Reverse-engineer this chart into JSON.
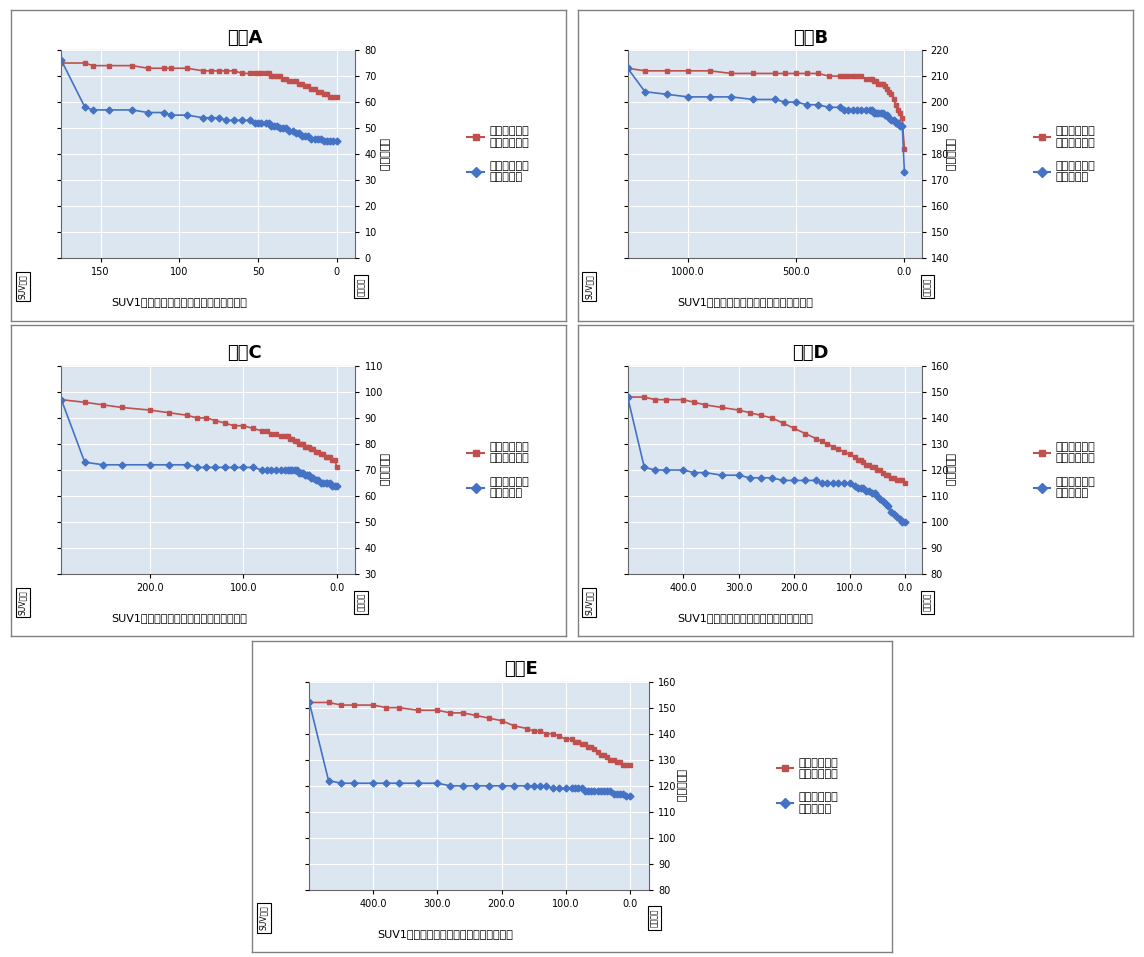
{
  "charts": [
    {
      "title": "地図A",
      "xlim_left": 175,
      "xlim_right": -12,
      "ylim_bottom": 0,
      "ylim_top": 80,
      "yticks": [
        0,
        10,
        20,
        30,
        40,
        50,
        60,
        70,
        80
      ],
      "xticks": [
        150,
        100,
        50,
        0
      ],
      "xtick_labels": [
        "150",
        "100",
        "50",
        "0"
      ],
      "red_x": [
        175,
        160,
        155,
        145,
        130,
        120,
        110,
        105,
        95,
        85,
        80,
        75,
        70,
        65,
        60,
        55,
        52,
        50,
        48,
        45,
        43,
        42,
        40,
        38,
        36,
        34,
        32,
        30,
        28,
        26,
        24,
        22,
        20,
        18,
        16,
        14,
        12,
        10,
        8,
        6,
        4,
        2,
        0
      ],
      "red_y": [
        75,
        75,
        74,
        74,
        74,
        73,
        73,
        73,
        73,
        72,
        72,
        72,
        72,
        72,
        71,
        71,
        71,
        71,
        71,
        71,
        71,
        70,
        70,
        70,
        70,
        69,
        69,
        68,
        68,
        68,
        67,
        67,
        66,
        66,
        65,
        65,
        64,
        64,
        63,
        63,
        62,
        62,
        62
      ],
      "blue_x": [
        175,
        160,
        155,
        145,
        130,
        120,
        110,
        105,
        95,
        85,
        80,
        75,
        70,
        65,
        60,
        55,
        52,
        50,
        48,
        45,
        43,
        42,
        40,
        38,
        36,
        34,
        32,
        30,
        28,
        26,
        24,
        22,
        20,
        18,
        16,
        14,
        12,
        10,
        8,
        6,
        4,
        2,
        0
      ],
      "blue_y": [
        76,
        58,
        57,
        57,
        57,
        56,
        56,
        55,
        55,
        54,
        54,
        54,
        53,
        53,
        53,
        53,
        52,
        52,
        52,
        52,
        52,
        51,
        51,
        51,
        50,
        50,
        50,
        49,
        49,
        48,
        48,
        47,
        47,
        47,
        46,
        46,
        46,
        46,
        45,
        45,
        45,
        45,
        45
      ]
    },
    {
      "title": "地図B",
      "xlim_left": 1280,
      "xlim_right": -80,
      "ylim_bottom": 140,
      "ylim_top": 220,
      "yticks": [
        140,
        150,
        160,
        170,
        180,
        190,
        200,
        210,
        220
      ],
      "xticks": [
        1000,
        500,
        0
      ],
      "xtick_labels": [
        "1000.0",
        "500.0",
        "0.0"
      ],
      "red_x": [
        1280,
        1200,
        1100,
        1000,
        900,
        800,
        700,
        600,
        550,
        500,
        450,
        400,
        350,
        300,
        280,
        260,
        240,
        220,
        200,
        180,
        160,
        150,
        140,
        130,
        120,
        110,
        100,
        90,
        80,
        70,
        60,
        50,
        40,
        30,
        20,
        10,
        0
      ],
      "red_y": [
        213,
        212,
        212,
        212,
        212,
        211,
        211,
        211,
        211,
        211,
        211,
        211,
        210,
        210,
        210,
        210,
        210,
        210,
        210,
        209,
        209,
        209,
        208,
        208,
        207,
        207,
        207,
        206,
        205,
        204,
        203,
        201,
        199,
        197,
        196,
        194,
        182
      ],
      "blue_x": [
        1280,
        1200,
        1100,
        1000,
        900,
        800,
        700,
        600,
        550,
        500,
        450,
        400,
        350,
        300,
        280,
        260,
        240,
        220,
        200,
        180,
        160,
        150,
        140,
        130,
        120,
        110,
        100,
        90,
        80,
        70,
        60,
        50,
        40,
        30,
        20,
        10,
        0
      ],
      "blue_y": [
        213,
        204,
        203,
        202,
        202,
        202,
        201,
        201,
        200,
        200,
        199,
        199,
        198,
        198,
        197,
        197,
        197,
        197,
        197,
        197,
        197,
        197,
        196,
        196,
        196,
        196,
        196,
        195,
        195,
        194,
        193,
        193,
        192,
        192,
        191,
        191,
        173
      ]
    },
    {
      "title": "地図C",
      "xlim_left": 295,
      "xlim_right": -20,
      "ylim_bottom": 30,
      "ylim_top": 110,
      "yticks": [
        30,
        40,
        50,
        60,
        70,
        80,
        90,
        100,
        110
      ],
      "xticks": [
        200,
        100,
        0
      ],
      "xtick_labels": [
        "200.0",
        "100.0",
        "0.0"
      ],
      "red_x": [
        295,
        270,
        250,
        230,
        200,
        180,
        160,
        150,
        140,
        130,
        120,
        110,
        100,
        90,
        80,
        75,
        70,
        65,
        60,
        55,
        52,
        50,
        48,
        45,
        43,
        40,
        38,
        36,
        34,
        32,
        30,
        28,
        25,
        22,
        20,
        17,
        15,
        12,
        10,
        7,
        5,
        2,
        0
      ],
      "red_y": [
        97,
        96,
        95,
        94,
        93,
        92,
        91,
        90,
        90,
        89,
        88,
        87,
        87,
        86,
        85,
        85,
        84,
        84,
        83,
        83,
        83,
        82,
        82,
        81,
        81,
        80,
        80,
        80,
        79,
        79,
        79,
        78,
        78,
        77,
        77,
        76,
        76,
        75,
        75,
        75,
        74,
        74,
        71
      ],
      "blue_x": [
        295,
        270,
        250,
        230,
        200,
        180,
        160,
        150,
        140,
        130,
        120,
        110,
        100,
        90,
        80,
        75,
        70,
        65,
        60,
        55,
        52,
        50,
        48,
        45,
        43,
        40,
        38,
        36,
        34,
        32,
        30,
        28,
        25,
        22,
        20,
        17,
        15,
        12,
        10,
        7,
        5,
        2,
        0
      ],
      "blue_y": [
        97,
        73,
        72,
        72,
        72,
        72,
        72,
        71,
        71,
        71,
        71,
        71,
        71,
        71,
        70,
        70,
        70,
        70,
        70,
        70,
        70,
        70,
        70,
        70,
        70,
        69,
        69,
        69,
        68,
        68,
        68,
        67,
        67,
        66,
        66,
        65,
        65,
        65,
        65,
        65,
        64,
        64,
        64
      ]
    },
    {
      "title": "地図D",
      "xlim_left": 500,
      "xlim_right": -30,
      "ylim_bottom": 80,
      "ylim_top": 160,
      "yticks": [
        80,
        90,
        100,
        110,
        120,
        130,
        140,
        150,
        160
      ],
      "xticks": [
        400,
        300,
        200,
        100,
        0
      ],
      "xtick_labels": [
        "400.0",
        "300.0",
        "200.0",
        "100.0",
        "0.0"
      ],
      "red_x": [
        500,
        470,
        450,
        430,
        400,
        380,
        360,
        330,
        300,
        280,
        260,
        240,
        220,
        200,
        180,
        160,
        150,
        140,
        130,
        120,
        110,
        100,
        90,
        85,
        80,
        75,
        70,
        65,
        60,
        55,
        50,
        45,
        40,
        35,
        30,
        25,
        20,
        15,
        10,
        5,
        0
      ],
      "red_y": [
        148,
        148,
        147,
        147,
        147,
        146,
        145,
        144,
        143,
        142,
        141,
        140,
        138,
        136,
        134,
        132,
        131,
        130,
        129,
        128,
        127,
        126,
        125,
        124,
        124,
        123,
        122,
        122,
        121,
        121,
        120,
        120,
        119,
        118,
        118,
        117,
        117,
        116,
        116,
        116,
        115
      ],
      "blue_x": [
        500,
        470,
        450,
        430,
        400,
        380,
        360,
        330,
        300,
        280,
        260,
        240,
        220,
        200,
        180,
        160,
        150,
        140,
        130,
        120,
        110,
        100,
        90,
        85,
        80,
        75,
        70,
        65,
        60,
        55,
        50,
        45,
        40,
        35,
        30,
        25,
        20,
        15,
        10,
        5,
        0
      ],
      "blue_y": [
        148,
        121,
        120,
        120,
        120,
        119,
        119,
        118,
        118,
        117,
        117,
        117,
        116,
        116,
        116,
        116,
        115,
        115,
        115,
        115,
        115,
        115,
        114,
        113,
        113,
        113,
        112,
        112,
        111,
        111,
        110,
        109,
        108,
        107,
        106,
        104,
        103,
        102,
        101,
        100,
        100
      ]
    },
    {
      "title": "地図E",
      "xlim_left": 500,
      "xlim_right": -30,
      "ylim_bottom": 80,
      "ylim_top": 160,
      "yticks": [
        80,
        90,
        100,
        110,
        120,
        130,
        140,
        150,
        160
      ],
      "xticks": [
        400,
        300,
        200,
        100,
        0
      ],
      "xtick_labels": [
        "400.0",
        "300.0",
        "200.0",
        "100.0",
        "0.0"
      ],
      "red_x": [
        500,
        470,
        450,
        430,
        400,
        380,
        360,
        330,
        300,
        280,
        260,
        240,
        220,
        200,
        180,
        160,
        150,
        140,
        130,
        120,
        110,
        100,
        90,
        85,
        80,
        75,
        70,
        65,
        60,
        55,
        50,
        45,
        40,
        35,
        30,
        25,
        20,
        15,
        10,
        5,
        0
      ],
      "red_y": [
        152,
        152,
        151,
        151,
        151,
        150,
        150,
        149,
        149,
        148,
        148,
        147,
        146,
        145,
        143,
        142,
        141,
        141,
        140,
        140,
        139,
        138,
        138,
        137,
        137,
        136,
        136,
        135,
        135,
        134,
        133,
        132,
        132,
        131,
        130,
        130,
        129,
        129,
        128,
        128,
        128
      ],
      "blue_x": [
        500,
        470,
        450,
        430,
        400,
        380,
        360,
        330,
        300,
        280,
        260,
        240,
        220,
        200,
        180,
        160,
        150,
        140,
        130,
        120,
        110,
        100,
        90,
        85,
        80,
        75,
        70,
        65,
        60,
        55,
        50,
        45,
        40,
        35,
        30,
        25,
        20,
        15,
        10,
        5,
        0
      ],
      "blue_y": [
        152,
        122,
        121,
        121,
        121,
        121,
        121,
        121,
        121,
        120,
        120,
        120,
        120,
        120,
        120,
        120,
        120,
        120,
        120,
        119,
        119,
        119,
        119,
        119,
        119,
        119,
        118,
        118,
        118,
        118,
        118,
        118,
        118,
        118,
        118,
        117,
        117,
        117,
        117,
        116,
        116
      ]
    }
  ],
  "red_color": "#C0504D",
  "blue_color": "#4472C4",
  "plot_bg": "#DCE6F1",
  "fig_bg": "#FFFFFF",
  "border_color": "#808080",
  "legend_red": "到着するまで\nのステップ数",
  "legend_blue": "走行していた\nステップ数",
  "ylabel": "ステップ数",
  "xlabel": "SUV1台あたりの巡回経路の距離（マス）",
  "left_label": "SUVの台",
  "right_label": "完全情報"
}
